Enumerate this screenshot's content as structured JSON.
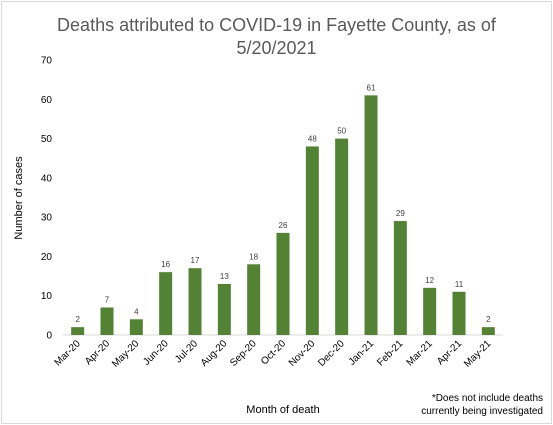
{
  "chart_data": {
    "type": "bar",
    "title_line1": "Deaths attributed to COVID-19 in Fayette County, as of",
    "title_line2": "5/20/2021",
    "xlabel": "Month of death",
    "ylabel": "Number of cases",
    "ylim": [
      0,
      70
    ],
    "yticks": [
      0,
      10,
      20,
      30,
      40,
      50,
      60,
      70
    ],
    "grid": false,
    "categories": [
      "Mar-20",
      "Apr-20",
      "May-20",
      "Jun-20",
      "Jul-20",
      "Aug-20",
      "Sep-20",
      "Oct-20",
      "Nov-20",
      "Dec-20",
      "Jan-21",
      "Feb-21",
      "Mar-21",
      "Apr-21",
      "May-21"
    ],
    "values": [
      2,
      7,
      4,
      16,
      17,
      13,
      18,
      26,
      48,
      50,
      61,
      29,
      12,
      11,
      2
    ],
    "bar_color": "#548235",
    "footnote_line1": "*Does not include deaths",
    "footnote_line2": "currently being investigated"
  }
}
